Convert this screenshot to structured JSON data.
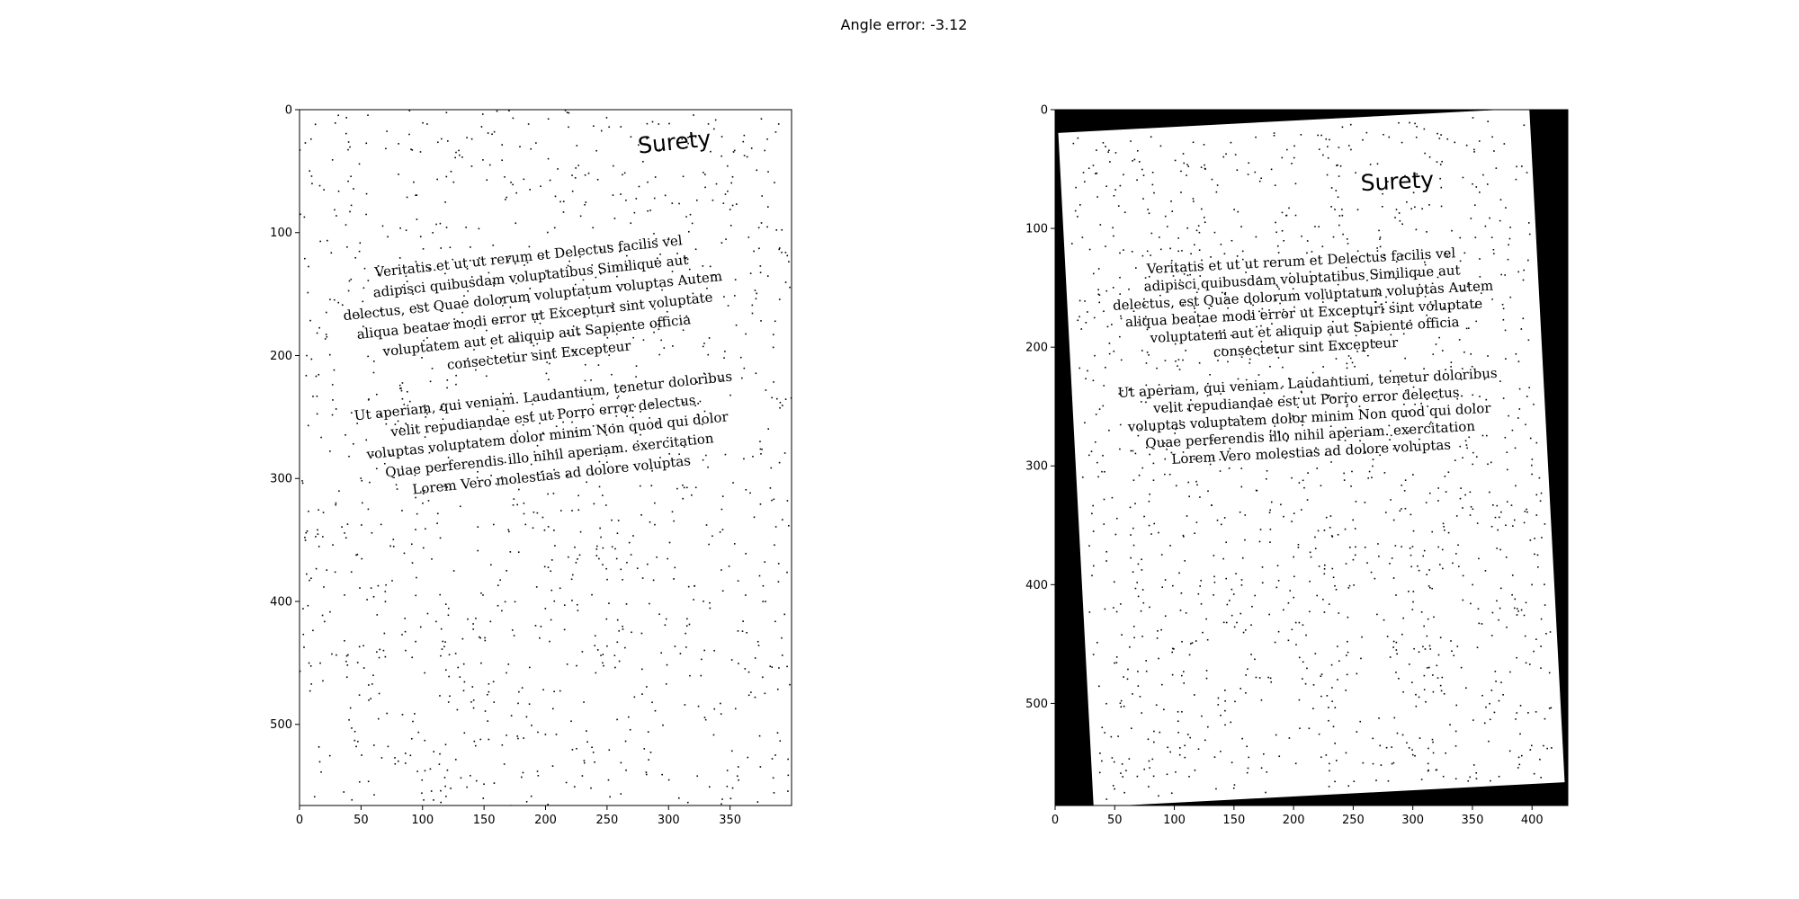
{
  "figure": {
    "suptitle": "Angle error: -3.12"
  },
  "colors": {
    "background": "#ffffff",
    "ink": "#000000",
    "fill": "#000000"
  },
  "chart_data": [
    {
      "type": "image",
      "title": "",
      "xlabel": "",
      "ylabel": "",
      "xlim": [
        0,
        400
      ],
      "ylim": [
        566,
        0
      ],
      "xticks": [
        0,
        50,
        100,
        150,
        200,
        250,
        300,
        350
      ],
      "yticks": [
        0,
        100,
        200,
        300,
        400,
        500
      ],
      "grid": false,
      "content": {
        "rotation_deg": -6,
        "heading": "Surety",
        "paragraphs": [
          [
            "Veritatis et ut ut rerum et  Delectus  facilis vel",
            "adipisci quibusdam voluptatibus  Similique aut",
            "delectus, est  Quae dolorum voluptatum voluptas  Autem",
            "aliqua  beatae modi error ut  Excepturi sint voluptate",
            "voluptatem aut et aliquip aut  Sapiente officia",
            "consectetur  sint Excepteur"
          ],
          [
            "Ut aperiam, qui veniam.  Laudantium, tenetur doloribus",
            "velit repudiandae est ut  Porro error delectus.",
            "voluptas voluptatem dolor minim  Non quod qui dolor",
            "Quae perferendis illo nihil aperiam. exercitation",
            "Lorem  Vero molestias ad dolore voluptas"
          ]
        ]
      }
    },
    {
      "type": "image",
      "title": "",
      "xlabel": "",
      "ylabel": "",
      "xlim": [
        0,
        430
      ],
      "ylim": [
        586,
        0
      ],
      "xticks": [
        0,
        50,
        100,
        150,
        200,
        250,
        300,
        350,
        400
      ],
      "yticks": [
        0,
        100,
        200,
        300,
        400,
        500
      ],
      "grid": false,
      "content": {
        "rotation_deg": -3,
        "heading": "Surety",
        "paragraphs": [
          [
            "Veritatis et ut ut rerum et  Delectus  facilis vel",
            "adipisci quibusdam voluptatibus  Similique aut",
            "delectus, est  Quae dolorum voluptatum voluptas  Autem",
            "aliqua  beatae modi error ut  Excepturi sint voluptate",
            "voluptatem aut et aliquip aut  Sapiente officia",
            "consectetur  sint Excepteur"
          ],
          [
            "Ut aperiam, qui veniam.  Laudantium, tenetur doloribus",
            "velit repudiandae est ut  Porro error delectus.",
            "voluptas voluptatem dolor minim  Non quod qui dolor",
            "Quae perferendis illo nihil aperiam. exercitation",
            "Lorem  Vero molestias ad dolore voluptas"
          ]
        ]
      }
    }
  ]
}
